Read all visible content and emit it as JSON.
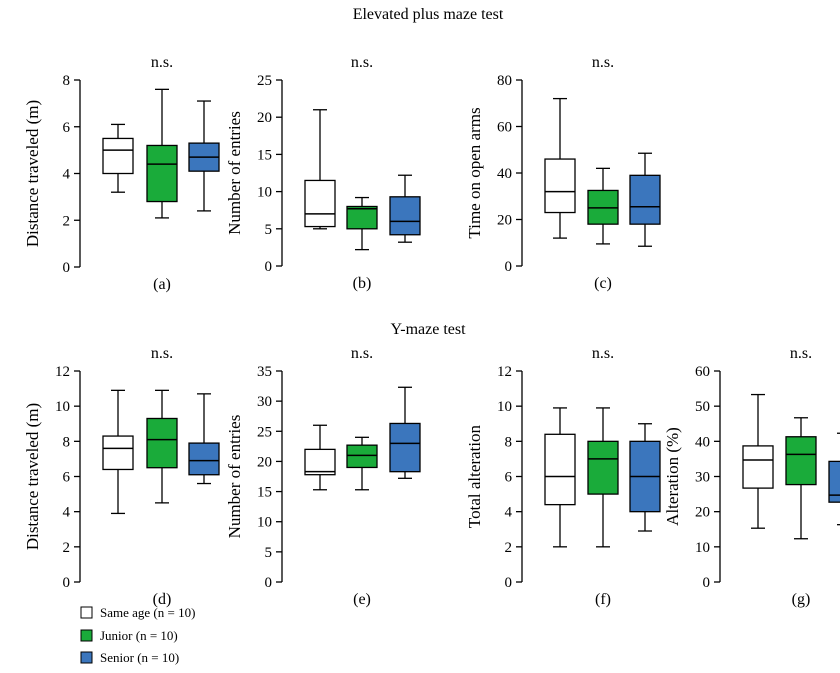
{
  "sections": [
    {
      "title": "Elevated plus maze test"
    },
    {
      "title": "Y-maze test"
    }
  ],
  "legend": {
    "items": [
      {
        "label": "Same age",
        "n_label": "(n = 10)",
        "color": "#ffffff"
      },
      {
        "label": "Junior",
        "n_label": "(n = 10)",
        "color": "#1aab3a"
      },
      {
        "label": "Senior",
        "n_label": "(n = 10)",
        "color": "#3b76bd"
      }
    ]
  },
  "chart_data": [
    {
      "type": "box",
      "section": "Elevated plus maze test",
      "panel_label": "(a)",
      "title": "n.s.",
      "ylabel": "Distance traveled (m)",
      "ylim": [
        0,
        8
      ],
      "yticks": [
        0,
        2,
        4,
        6,
        8
      ],
      "series": [
        {
          "name": "Same age",
          "color": "#ffffff",
          "min": 3.2,
          "q1": 4.0,
          "median": 5.0,
          "q3": 5.5,
          "max": 6.1
        },
        {
          "name": "Junior",
          "color": "#1aab3a",
          "min": 2.1,
          "q1": 2.8,
          "median": 4.4,
          "q3": 5.2,
          "max": 7.6
        },
        {
          "name": "Senior",
          "color": "#3b76bd",
          "min": 2.4,
          "q1": 4.1,
          "median": 4.7,
          "q3": 5.3,
          "max": 7.1
        }
      ]
    },
    {
      "type": "box",
      "section": "Elevated plus maze test",
      "panel_label": "(b)",
      "title": "n.s.",
      "ylabel": "Number of entries",
      "ylim": [
        0,
        25
      ],
      "yticks": [
        0,
        5,
        10,
        15,
        20,
        25
      ],
      "series": [
        {
          "name": "Same age",
          "color": "#ffffff",
          "min": 5.0,
          "q1": 5.3,
          "median": 7.0,
          "q3": 11.5,
          "max": 21.0
        },
        {
          "name": "Junior",
          "color": "#1aab3a",
          "min": 2.2,
          "q1": 5.0,
          "median": 7.7,
          "q3": 8.0,
          "max": 9.2
        },
        {
          "name": "Senior",
          "color": "#3b76bd",
          "min": 3.2,
          "q1": 4.2,
          "median": 6.0,
          "q3": 9.3,
          "max": 12.2
        }
      ]
    },
    {
      "type": "box",
      "section": "Elevated plus maze test",
      "panel_label": "(c)",
      "title": "n.s.",
      "ylabel": "Time on open arms",
      "ylim": [
        0,
        80
      ],
      "yticks": [
        0,
        20,
        40,
        60,
        80
      ],
      "series": [
        {
          "name": "Same age",
          "color": "#ffffff",
          "min": 12,
          "q1": 23,
          "median": 32,
          "q3": 46,
          "max": 72
        },
        {
          "name": "Junior",
          "color": "#1aab3a",
          "min": 9.5,
          "q1": 18,
          "median": 25,
          "q3": 32.5,
          "max": 42
        },
        {
          "name": "Senior",
          "color": "#3b76bd",
          "min": 8.5,
          "q1": 18,
          "median": 25.5,
          "q3": 39,
          "max": 48.5
        }
      ]
    },
    {
      "type": "box",
      "section": "Y-maze test",
      "panel_label": "(d)",
      "title": "n.s.",
      "ylabel": "Distance traveled (m)",
      "ylim": [
        0,
        12
      ],
      "yticks": [
        0,
        2,
        4,
        6,
        8,
        10,
        12
      ],
      "series": [
        {
          "name": "Same age",
          "color": "#ffffff",
          "min": 3.9,
          "q1": 6.4,
          "median": 7.6,
          "q3": 8.3,
          "max": 10.9
        },
        {
          "name": "Junior",
          "color": "#1aab3a",
          "min": 4.5,
          "q1": 6.5,
          "median": 8.1,
          "q3": 9.3,
          "max": 10.9
        },
        {
          "name": "Senior",
          "color": "#3b76bd",
          "min": 5.6,
          "q1": 6.1,
          "median": 6.9,
          "q3": 7.9,
          "max": 10.7
        }
      ]
    },
    {
      "type": "box",
      "section": "Y-maze test",
      "panel_label": "(e)",
      "title": "n.s.",
      "ylabel": "Number of entries",
      "ylim": [
        0,
        35
      ],
      "yticks": [
        0,
        5,
        10,
        15,
        20,
        25,
        30,
        35
      ],
      "series": [
        {
          "name": "Same age",
          "color": "#ffffff",
          "min": 15.3,
          "q1": 17.8,
          "median": 18.3,
          "q3": 22.0,
          "max": 26.0
        },
        {
          "name": "Junior",
          "color": "#1aab3a",
          "min": 15.3,
          "q1": 19.0,
          "median": 21.0,
          "q3": 22.7,
          "max": 24.0
        },
        {
          "name": "Senior",
          "color": "#3b76bd",
          "min": 17.2,
          "q1": 18.3,
          "median": 23.0,
          "q3": 26.3,
          "max": 32.3
        }
      ]
    },
    {
      "type": "box",
      "section": "Y-maze test",
      "panel_label": "(f)",
      "title": "n.s.",
      "ylabel": "Total alteration",
      "ylim": [
        0,
        12
      ],
      "yticks": [
        0,
        2,
        4,
        6,
        8,
        10,
        12
      ],
      "series": [
        {
          "name": "Same age",
          "color": "#ffffff",
          "min": 2.0,
          "q1": 4.4,
          "median": 6.0,
          "q3": 8.4,
          "max": 9.9
        },
        {
          "name": "Junior",
          "color": "#1aab3a",
          "min": 2.0,
          "q1": 5.0,
          "median": 7.0,
          "q3": 8.0,
          "max": 9.9
        },
        {
          "name": "Senior",
          "color": "#3b76bd",
          "min": 2.9,
          "q1": 4.0,
          "median": 6.0,
          "q3": 8.0,
          "max": 9.0
        }
      ]
    },
    {
      "type": "box",
      "section": "Y-maze test",
      "panel_label": "(g)",
      "title": "n.s.",
      "ylabel": "Alteration (%)",
      "ylim": [
        0,
        60
      ],
      "yticks": [
        0,
        10,
        20,
        30,
        40,
        50,
        60
      ],
      "series": [
        {
          "name": "Same age",
          "color": "#ffffff",
          "min": 15.3,
          "q1": 26.7,
          "median": 34.7,
          "q3": 38.7,
          "max": 53.3
        },
        {
          "name": "Junior",
          "color": "#1aab3a",
          "min": 12.3,
          "q1": 27.7,
          "median": 36.3,
          "q3": 41.3,
          "max": 46.7
        },
        {
          "name": "Senior",
          "color": "#3b76bd",
          "min": 16.3,
          "q1": 22.7,
          "median": 24.7,
          "q3": 34.3,
          "max": 42.3
        }
      ]
    }
  ]
}
